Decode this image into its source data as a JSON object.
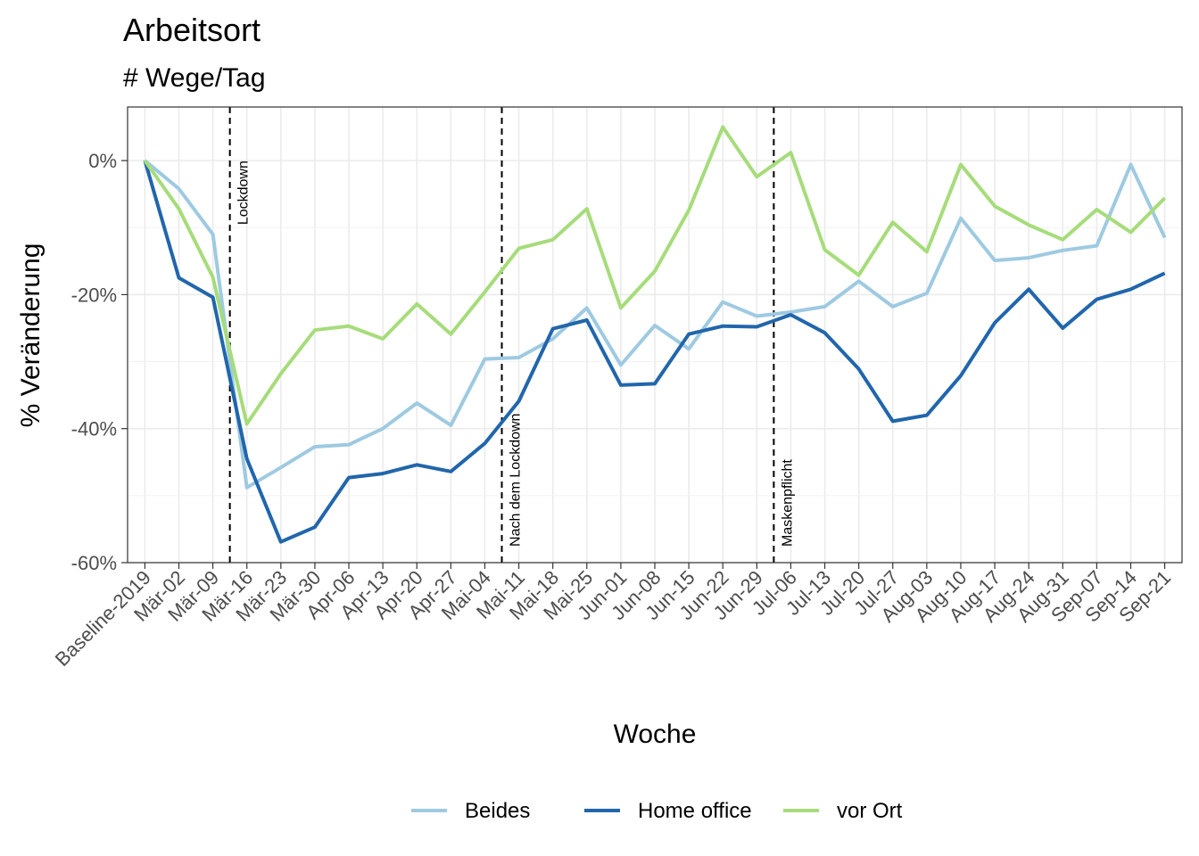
{
  "chart_data": {
    "type": "line",
    "title": "Arbeitsort",
    "subtitle": "# Wege/Tag",
    "xlabel": "Woche",
    "ylabel": "% Veränderung",
    "ylim": [
      -60,
      8
    ],
    "yticks": [
      0,
      -20,
      -40,
      -60
    ],
    "ytick_labels": [
      "0%",
      "-20%",
      "-40%",
      "-60%"
    ],
    "grid": true,
    "legend_position": "bottom",
    "categories": [
      "Baseline-2019",
      "Mär-02",
      "Mär-09",
      "Mär-16",
      "Mär-23",
      "Mär-30",
      "Apr-06",
      "Apr-13",
      "Apr-20",
      "Apr-27",
      "Mai-04",
      "Mai-11",
      "Mai-18",
      "Mai-25",
      "Jun-01",
      "Jun-08",
      "Jun-15",
      "Jun-22",
      "Jun-29",
      "Jul-06",
      "Jul-13",
      "Jul-20",
      "Jul-27",
      "Aug-03",
      "Aug-10",
      "Aug-17",
      "Aug-24",
      "Aug-31",
      "Sep-07",
      "Sep-14",
      "Sep-21"
    ],
    "series": [
      {
        "name": "Beides",
        "color": "#9ecae1",
        "values": [
          0,
          -4.2,
          -11,
          -48.8,
          -45.8,
          -42.7,
          -42.4,
          -40,
          -36.2,
          -39.5,
          -29.6,
          -29.4,
          -26.6,
          -22,
          -30.5,
          -24.6,
          -28.1,
          -21.1,
          -23.2,
          -22.6,
          -21.8,
          -18,
          -21.8,
          -19.8,
          -8.6,
          -14.9,
          -14.5,
          -13.4,
          -12.7,
          -0.6,
          -11.5
        ]
      },
      {
        "name": "Home office",
        "color": "#2166ac",
        "values": [
          0,
          -17.5,
          -20.4,
          -44.5,
          -56.9,
          -54.7,
          -47.3,
          -46.7,
          -45.4,
          -46.4,
          -42.2,
          -35.9,
          -25.1,
          -23.8,
          -33.5,
          -33.3,
          -25.9,
          -24.7,
          -24.8,
          -23,
          -25.7,
          -31.1,
          -38.9,
          -38,
          -32.1,
          -24.2,
          -19.2,
          -25,
          -20.7,
          -19.2,
          -16.8
        ]
      },
      {
        "name": "vor Ort",
        "color": "#a6dc7a",
        "values": [
          0,
          -7.2,
          -17.4,
          -39.3,
          -31.8,
          -25.3,
          -24.7,
          -26.6,
          -21.4,
          -25.9,
          -19.6,
          -13.1,
          -11.8,
          -7.2,
          -22,
          -16.5,
          -7.4,
          5,
          -2.4,
          1.2,
          -13.3,
          -17.1,
          -9.2,
          -13.6,
          -0.6,
          -6.8,
          -9.6,
          -11.8,
          -7.3,
          -10.7,
          -5.6
        ]
      }
    ],
    "events": [
      {
        "label": "Lockdown",
        "after_category": "Mär-09"
      },
      {
        "label": "Nach dem Lockdown",
        "after_category": "Mai-04"
      },
      {
        "label": "Maskenpflicht",
        "after_category": "Jun-29"
      }
    ]
  }
}
